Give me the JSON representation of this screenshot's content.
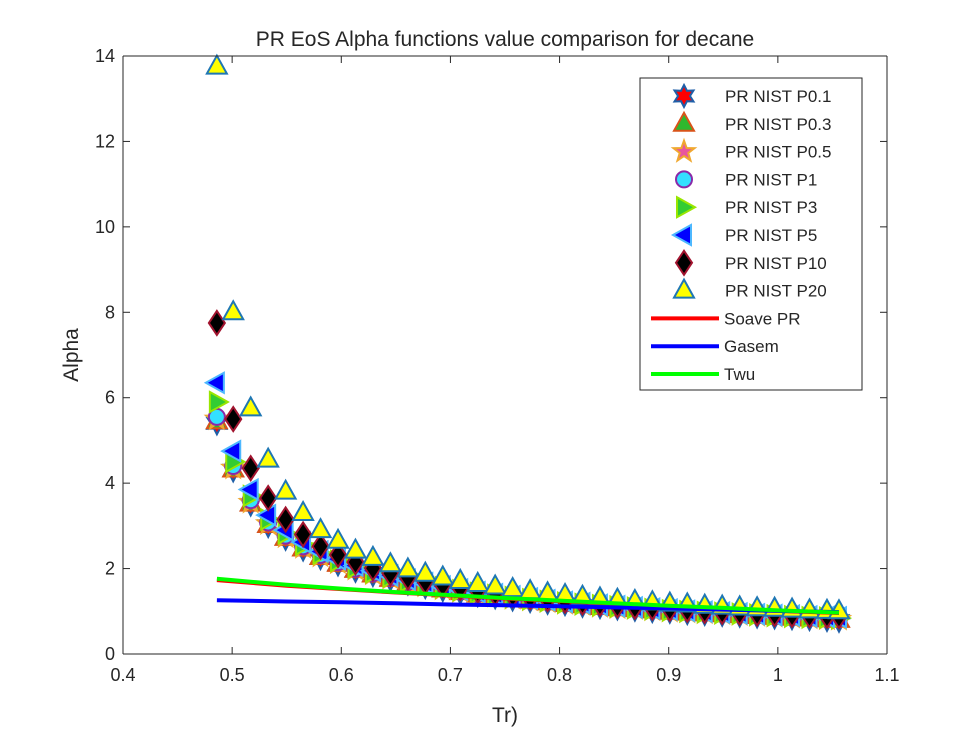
{
  "chart_data": {
    "type": "scatter",
    "title": "PR EoS Alpha functions value comparison for decane",
    "xlabel": "Tr)",
    "ylabel": "Alpha",
    "xlim": [
      0.4,
      1.1
    ],
    "ylim": [
      0,
      14
    ],
    "xticks": [
      "0.4",
      "0.5",
      "0.6",
      "0.7",
      "0.8",
      "0.9",
      "1",
      "1.1"
    ],
    "yticks": [
      "0",
      "2",
      "4",
      "6",
      "8",
      "10",
      "12",
      "14"
    ],
    "grid": false,
    "legend_position": "top-right",
    "series": [
      {
        "name": "PR NIST P0.1",
        "kind": "marker",
        "marker": "hexagram",
        "fill": "#ff0000",
        "edge": "#1f5fa8",
        "x": [
          0.486,
          0.501,
          0.517,
          0.533,
          0.549,
          0.565,
          0.581,
          0.597,
          0.613,
          0.629,
          0.645,
          0.661,
          0.677,
          0.693,
          0.709,
          0.725,
          0.741,
          0.757,
          0.773,
          0.789,
          0.805,
          0.821,
          0.837,
          0.853,
          0.869,
          0.885,
          0.901,
          0.917,
          0.933,
          0.949,
          0.965,
          0.981,
          0.997,
          1.013,
          1.029,
          1.045,
          1.056
        ],
        "y": [
          5.4,
          4.3,
          3.5,
          3.0,
          2.7,
          2.45,
          2.25,
          2.1,
          1.95,
          1.85,
          1.75,
          1.65,
          1.57,
          1.5,
          1.44,
          1.38,
          1.33,
          1.28,
          1.24,
          1.2,
          1.17,
          1.13,
          1.1,
          1.07,
          1.04,
          1.01,
          0.99,
          0.96,
          0.94,
          0.92,
          0.9,
          0.88,
          0.86,
          0.84,
          0.82,
          0.8,
          0.78
        ]
      },
      {
        "name": "PR NIST P0.3",
        "kind": "marker",
        "marker": "triangle-up",
        "fill": "#2eb82e",
        "edge": "#d95319",
        "x": [
          0.486,
          0.501,
          0.517,
          0.533,
          0.549,
          0.565,
          0.581,
          0.597,
          0.613,
          0.629,
          0.645,
          0.661,
          0.677,
          0.693,
          0.709,
          0.725,
          0.741,
          0.757,
          0.773,
          0.789,
          0.805,
          0.821,
          0.837,
          0.853,
          0.869,
          0.885,
          0.901,
          0.917,
          0.933,
          0.949,
          0.965,
          0.981,
          0.997,
          1.013,
          1.029,
          1.045,
          1.056
        ],
        "y": [
          5.45,
          4.32,
          3.52,
          3.02,
          2.72,
          2.47,
          2.27,
          2.11,
          1.97,
          1.86,
          1.76,
          1.66,
          1.58,
          1.51,
          1.45,
          1.39,
          1.34,
          1.29,
          1.25,
          1.21,
          1.17,
          1.14,
          1.1,
          1.07,
          1.05,
          1.02,
          0.99,
          0.97,
          0.95,
          0.93,
          0.91,
          0.89,
          0.87,
          0.85,
          0.83,
          0.81,
          0.8
        ]
      },
      {
        "name": "PR NIST P0.5",
        "kind": "marker",
        "marker": "pentagram",
        "fill": "#e8569e",
        "edge": "#f0a830",
        "x": [
          0.486,
          0.501,
          0.517,
          0.533,
          0.549,
          0.565,
          0.581,
          0.597,
          0.613,
          0.629,
          0.645,
          0.661,
          0.677,
          0.693,
          0.709,
          0.725,
          0.741,
          0.757,
          0.773,
          0.789,
          0.805,
          0.821,
          0.837,
          0.853,
          0.869,
          0.885,
          0.901,
          0.917,
          0.933,
          0.949,
          0.965,
          0.981,
          0.997,
          1.013,
          1.029,
          1.045,
          1.056
        ],
        "y": [
          5.5,
          4.35,
          3.55,
          3.05,
          2.74,
          2.49,
          2.29,
          2.13,
          1.98,
          1.87,
          1.77,
          1.67,
          1.59,
          1.52,
          1.46,
          1.4,
          1.35,
          1.3,
          1.26,
          1.22,
          1.18,
          1.15,
          1.11,
          1.08,
          1.06,
          1.03,
          1.0,
          0.98,
          0.96,
          0.94,
          0.92,
          0.9,
          0.88,
          0.86,
          0.84,
          0.82,
          0.81
        ]
      },
      {
        "name": "PR NIST P1",
        "kind": "marker",
        "marker": "circle",
        "fill": "#33e0ff",
        "edge": "#8a2aa8",
        "x": [
          0.486,
          0.501,
          0.517,
          0.533,
          0.549,
          0.565,
          0.581,
          0.597,
          0.613,
          0.629,
          0.645,
          0.661,
          0.677,
          0.693,
          0.709,
          0.725,
          0.741,
          0.757,
          0.773,
          0.789,
          0.805,
          0.821,
          0.837,
          0.853,
          0.869,
          0.885,
          0.901,
          0.917,
          0.933,
          0.949,
          0.965,
          0.981,
          0.997,
          1.013,
          1.029,
          1.045,
          1.056
        ],
        "y": [
          5.55,
          4.4,
          3.6,
          3.08,
          2.77,
          2.52,
          2.32,
          2.15,
          2.0,
          1.89,
          1.79,
          1.69,
          1.61,
          1.54,
          1.47,
          1.41,
          1.36,
          1.31,
          1.27,
          1.23,
          1.19,
          1.16,
          1.12,
          1.09,
          1.07,
          1.04,
          1.01,
          0.99,
          0.97,
          0.95,
          0.93,
          0.91,
          0.89,
          0.87,
          0.85,
          0.84,
          0.83
        ]
      },
      {
        "name": "PR NIST P3",
        "kind": "marker",
        "marker": "triangle-right",
        "fill": "#33cc33",
        "edge": "#99e600",
        "x": [
          0.486,
          0.501,
          0.517,
          0.533,
          0.549,
          0.565,
          0.581,
          0.597,
          0.613,
          0.629,
          0.645,
          0.661,
          0.677,
          0.693,
          0.709,
          0.725,
          0.741,
          0.757,
          0.773,
          0.789,
          0.805,
          0.821,
          0.837,
          0.853,
          0.869,
          0.885,
          0.901,
          0.917,
          0.933,
          0.949,
          0.965,
          0.981,
          0.997,
          1.013,
          1.029,
          1.045,
          1.056
        ],
        "y": [
          5.9,
          4.5,
          3.7,
          3.15,
          2.82,
          2.56,
          2.35,
          2.18,
          2.03,
          1.91,
          1.81,
          1.71,
          1.63,
          1.56,
          1.49,
          1.43,
          1.38,
          1.33,
          1.28,
          1.24,
          1.2,
          1.17,
          1.14,
          1.11,
          1.08,
          1.05,
          1.02,
          1.0,
          0.98,
          0.96,
          0.94,
          0.92,
          0.9,
          0.88,
          0.86,
          0.85,
          0.84
        ]
      },
      {
        "name": "PR NIST P5",
        "kind": "marker",
        "marker": "triangle-left",
        "fill": "#0000ff",
        "edge": "#4db8ff",
        "x": [
          0.486,
          0.501,
          0.517,
          0.533,
          0.549,
          0.565,
          0.581,
          0.597,
          0.613,
          0.629,
          0.645,
          0.661,
          0.677,
          0.693,
          0.709,
          0.725,
          0.741,
          0.757,
          0.773,
          0.789,
          0.805,
          0.821,
          0.837,
          0.853,
          0.869,
          0.885,
          0.901,
          0.917,
          0.933,
          0.949,
          0.965,
          0.981,
          0.997,
          1.013,
          1.029,
          1.045,
          1.056
        ],
        "y": [
          6.35,
          4.75,
          3.85,
          3.25,
          2.9,
          2.62,
          2.4,
          2.22,
          2.07,
          1.95,
          1.84,
          1.74,
          1.66,
          1.58,
          1.51,
          1.45,
          1.4,
          1.35,
          1.3,
          1.26,
          1.22,
          1.19,
          1.15,
          1.12,
          1.09,
          1.06,
          1.04,
          1.01,
          0.99,
          0.97,
          0.95,
          0.93,
          0.91,
          0.9,
          0.88,
          0.87,
          0.86
        ]
      },
      {
        "name": "PR NIST P10",
        "kind": "marker",
        "marker": "diamond",
        "fill": "#000000",
        "edge": "#a2142f",
        "x": [
          0.486,
          0.501,
          0.517,
          0.533,
          0.549,
          0.565,
          0.581,
          0.597,
          0.613,
          0.629,
          0.645,
          0.661,
          0.677,
          0.693,
          0.709,
          0.725,
          0.741,
          0.757,
          0.773,
          0.789,
          0.805,
          0.821,
          0.837,
          0.853,
          0.869,
          0.885,
          0.901,
          0.917,
          0.933,
          0.949,
          0.965,
          0.981,
          0.997,
          1.013,
          1.029,
          1.045,
          1.056
        ],
        "y": [
          7.75,
          5.5,
          4.35,
          3.65,
          3.15,
          2.8,
          2.52,
          2.32,
          2.15,
          2.01,
          1.89,
          1.79,
          1.7,
          1.62,
          1.55,
          1.49,
          1.43,
          1.38,
          1.33,
          1.29,
          1.25,
          1.21,
          1.18,
          1.14,
          1.11,
          1.09,
          1.06,
          1.04,
          1.01,
          0.99,
          0.97,
          0.95,
          0.94,
          0.92,
          0.91,
          0.9,
          0.89
        ]
      },
      {
        "name": "PR NIST P20",
        "kind": "marker",
        "marker": "triangle-up",
        "fill": "#ffff00",
        "edge": "#1f77b4",
        "x": [
          0.486,
          0.501,
          0.517,
          0.533,
          0.549,
          0.565,
          0.581,
          0.597,
          0.613,
          0.629,
          0.645,
          0.661,
          0.677,
          0.693,
          0.709,
          0.725,
          0.741,
          0.757,
          0.773,
          0.789,
          0.805,
          0.821,
          0.837,
          0.853,
          0.869,
          0.885,
          0.901,
          0.917,
          0.933,
          0.949,
          0.965,
          0.981,
          0.997,
          1.013,
          1.029,
          1.045,
          1.056
        ],
        "y": [
          13.75,
          8.0,
          5.75,
          4.55,
          3.8,
          3.3,
          2.9,
          2.65,
          2.42,
          2.25,
          2.1,
          1.98,
          1.88,
          1.79,
          1.71,
          1.64,
          1.58,
          1.52,
          1.47,
          1.42,
          1.38,
          1.34,
          1.3,
          1.27,
          1.24,
          1.21,
          1.18,
          1.16,
          1.13,
          1.11,
          1.09,
          1.07,
          1.06,
          1.04,
          1.02,
          1.01,
          1.0
        ]
      },
      {
        "name": "Soave PR",
        "kind": "line",
        "color": "#ff0000",
        "x": [
          0.486,
          0.55,
          0.6,
          0.65,
          0.7,
          0.75,
          0.8,
          0.85,
          0.9,
          0.95,
          1.0,
          1.056
        ],
        "y": [
          1.73,
          1.6,
          1.52,
          1.44,
          1.37,
          1.3,
          1.24,
          1.18,
          1.12,
          1.07,
          1.01,
          0.96
        ]
      },
      {
        "name": "Gasem",
        "kind": "line",
        "color": "#0000ff",
        "x": [
          0.486,
          0.55,
          0.6,
          0.65,
          0.7,
          0.75,
          0.8,
          0.85,
          0.9,
          0.95,
          1.0,
          1.056
        ],
        "y": [
          1.26,
          1.23,
          1.21,
          1.19,
          1.16,
          1.14,
          1.12,
          1.09,
          1.07,
          1.04,
          1.01,
          0.98
        ]
      },
      {
        "name": "Twu",
        "kind": "line",
        "color": "#00ff00",
        "x": [
          0.486,
          0.55,
          0.6,
          0.65,
          0.7,
          0.75,
          0.8,
          0.85,
          0.9,
          0.95,
          1.0,
          1.056
        ],
        "y": [
          1.76,
          1.62,
          1.53,
          1.45,
          1.38,
          1.31,
          1.25,
          1.19,
          1.13,
          1.08,
          1.02,
          0.97
        ]
      }
    ]
  }
}
